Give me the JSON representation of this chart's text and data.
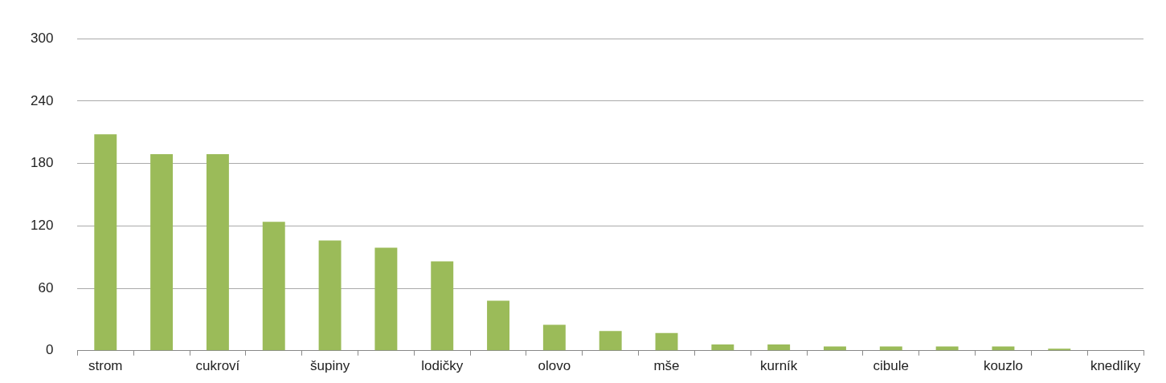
{
  "chart_data": {
    "type": "bar",
    "categories": [
      "strom",
      null,
      "cukroví",
      null,
      "šupiny",
      null,
      "lodičky",
      null,
      "olovo",
      null,
      "mše",
      null,
      "kurník",
      null,
      "cibule",
      null,
      "kouzlo",
      null,
      "knedlíky"
    ],
    "values": [
      208,
      189,
      189,
      124,
      106,
      99,
      86,
      48,
      25,
      19,
      17,
      6,
      6,
      4,
      4,
      4,
      4,
      2,
      0
    ],
    "color": "#9bbb59",
    "ylim": [
      0,
      300
    ],
    "yticks": [
      0,
      60,
      120,
      180,
      240,
      300
    ],
    "grid": "y",
    "legend": false
  }
}
